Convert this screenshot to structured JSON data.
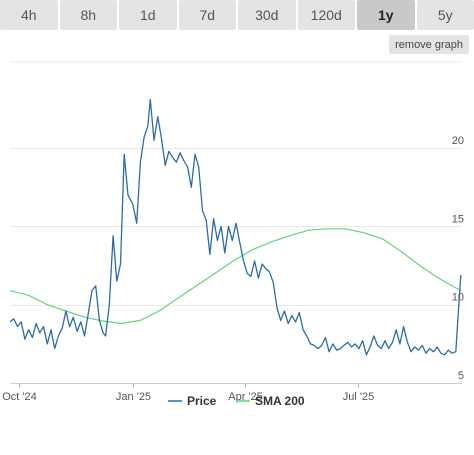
{
  "timeframe_tabs": [
    {
      "label": "4h",
      "active": false
    },
    {
      "label": "8h",
      "active": false
    },
    {
      "label": "1d",
      "active": false
    },
    {
      "label": "7d",
      "active": false
    },
    {
      "label": "30d",
      "active": false
    },
    {
      "label": "120d",
      "active": false
    },
    {
      "label": "1y",
      "active": true
    },
    {
      "label": "5y",
      "active": false
    }
  ],
  "remove_graph_label": "remove graph",
  "colors": {
    "price": "#2b6ca8",
    "sma": "#67d27e",
    "grid": "#e9e9e9",
    "tab_bg": "#e4e4e4",
    "tab_active_bg": "#c9c9c9"
  },
  "chart_data": {
    "type": "line",
    "x_tick_labels": [
      "Oct '24",
      "Jan '25",
      "Apr '25",
      "Jul '25"
    ],
    "x_ticks": [
      "2024-10-01",
      "2025-01-01",
      "2025-04-01",
      "2025-07-01"
    ],
    "xlim": [
      "2024-09-24",
      "2025-09-23"
    ],
    "y_tick_labels": [
      "5",
      "10",
      "15",
      "20"
    ],
    "y_ticks": [
      5,
      10,
      15,
      20
    ],
    "ylim": [
      5,
      25.5
    ],
    "y_axis_side": "right",
    "grid": "horizontal",
    "legend_position": "bottom-center",
    "series": [
      {
        "name": "Price",
        "color": "#2b6ca8",
        "points": [
          [
            "2024-09-24",
            8.9
          ],
          [
            "2024-09-27",
            9.1
          ],
          [
            "2024-09-30",
            8.6
          ],
          [
            "2024-10-03",
            8.9
          ],
          [
            "2024-10-06",
            7.8
          ],
          [
            "2024-10-09",
            8.4
          ],
          [
            "2024-10-12",
            7.9
          ],
          [
            "2024-10-15",
            8.8
          ],
          [
            "2024-10-18",
            8.2
          ],
          [
            "2024-10-21",
            8.6
          ],
          [
            "2024-10-24",
            7.5
          ],
          [
            "2024-10-27",
            8.4
          ],
          [
            "2024-10-30",
            7.2
          ],
          [
            "2024-11-02",
            8.0
          ],
          [
            "2024-11-05",
            8.5
          ],
          [
            "2024-11-08",
            9.6
          ],
          [
            "2024-11-11",
            8.6
          ],
          [
            "2024-11-14",
            9.2
          ],
          [
            "2024-11-17",
            8.3
          ],
          [
            "2024-11-20",
            8.9
          ],
          [
            "2024-11-23",
            8.0
          ],
          [
            "2024-11-26",
            9.4
          ],
          [
            "2024-11-29",
            10.9
          ],
          [
            "2024-12-02",
            11.2
          ],
          [
            "2024-12-05",
            9.0
          ],
          [
            "2024-12-08",
            8.2
          ],
          [
            "2024-12-10",
            8.0
          ],
          [
            "2024-12-13",
            10.0
          ],
          [
            "2024-12-16",
            14.4
          ],
          [
            "2024-12-19",
            11.5
          ],
          [
            "2024-12-22",
            12.6
          ],
          [
            "2024-12-25",
            19.6
          ],
          [
            "2024-12-28",
            17.0
          ],
          [
            "2025-01-01",
            16.4
          ],
          [
            "2025-01-04",
            15.2
          ],
          [
            "2025-01-07",
            19.1
          ],
          [
            "2025-01-10",
            20.7
          ],
          [
            "2025-01-13",
            21.4
          ],
          [
            "2025-01-15",
            23.1
          ],
          [
            "2025-01-18",
            20.5
          ],
          [
            "2025-01-21",
            22.0
          ],
          [
            "2025-01-24",
            20.6
          ],
          [
            "2025-01-27",
            18.9
          ],
          [
            "2025-01-30",
            19.8
          ],
          [
            "2025-02-02",
            19.4
          ],
          [
            "2025-02-05",
            19.1
          ],
          [
            "2025-02-08",
            19.7
          ],
          [
            "2025-02-11",
            19.2
          ],
          [
            "2025-02-14",
            18.8
          ],
          [
            "2025-02-17",
            17.5
          ],
          [
            "2025-02-20",
            19.6
          ],
          [
            "2025-02-23",
            18.8
          ],
          [
            "2025-02-26",
            16.0
          ],
          [
            "2025-03-01",
            15.4
          ],
          [
            "2025-03-04",
            13.2
          ],
          [
            "2025-03-07",
            15.5
          ],
          [
            "2025-03-10",
            14.1
          ],
          [
            "2025-03-13",
            15.0
          ],
          [
            "2025-03-16",
            13.3
          ],
          [
            "2025-03-19",
            15.0
          ],
          [
            "2025-03-22",
            14.1
          ],
          [
            "2025-03-25",
            15.2
          ],
          [
            "2025-03-28",
            14.0
          ],
          [
            "2025-03-31",
            12.8
          ],
          [
            "2025-04-03",
            12.0
          ],
          [
            "2025-04-06",
            11.8
          ],
          [
            "2025-04-09",
            12.8
          ],
          [
            "2025-04-12",
            11.7
          ],
          [
            "2025-04-15",
            12.6
          ],
          [
            "2025-04-18",
            12.3
          ],
          [
            "2025-04-21",
            12.1
          ],
          [
            "2025-04-24",
            11.4
          ],
          [
            "2025-04-27",
            9.8
          ],
          [
            "2025-04-30",
            9.0
          ],
          [
            "2025-05-03",
            9.6
          ],
          [
            "2025-05-06",
            8.8
          ],
          [
            "2025-05-09",
            9.3
          ],
          [
            "2025-05-12",
            8.9
          ],
          [
            "2025-05-15",
            9.5
          ],
          [
            "2025-05-18",
            8.4
          ],
          [
            "2025-05-21",
            8.0
          ],
          [
            "2025-05-24",
            7.5
          ],
          [
            "2025-05-27",
            7.4
          ],
          [
            "2025-05-30",
            7.2
          ],
          [
            "2025-06-02",
            7.4
          ],
          [
            "2025-06-05",
            7.9
          ],
          [
            "2025-06-08",
            7.0
          ],
          [
            "2025-06-11",
            7.5
          ],
          [
            "2025-06-14",
            7.1
          ],
          [
            "2025-06-17",
            7.2
          ],
          [
            "2025-06-20",
            7.4
          ],
          [
            "2025-06-23",
            7.6
          ],
          [
            "2025-06-26",
            7.3
          ],
          [
            "2025-06-29",
            7.5
          ],
          [
            "2025-07-02",
            7.2
          ],
          [
            "2025-07-05",
            7.7
          ],
          [
            "2025-07-08",
            6.8
          ],
          [
            "2025-07-11",
            7.3
          ],
          [
            "2025-07-14",
            8.0
          ],
          [
            "2025-07-17",
            7.4
          ],
          [
            "2025-07-20",
            7.2
          ],
          [
            "2025-07-23",
            7.7
          ],
          [
            "2025-07-26",
            7.2
          ],
          [
            "2025-07-29",
            7.6
          ],
          [
            "2025-08-01",
            8.4
          ],
          [
            "2025-08-04",
            7.5
          ],
          [
            "2025-08-07",
            8.6
          ],
          [
            "2025-08-10",
            7.6
          ],
          [
            "2025-08-13",
            7.0
          ],
          [
            "2025-08-16",
            7.3
          ],
          [
            "2025-08-19",
            7.1
          ],
          [
            "2025-08-22",
            7.4
          ],
          [
            "2025-08-25",
            6.9
          ],
          [
            "2025-08-28",
            7.2
          ],
          [
            "2025-08-31",
            7.0
          ],
          [
            "2025-09-03",
            7.3
          ],
          [
            "2025-09-06",
            6.9
          ],
          [
            "2025-09-09",
            6.8
          ],
          [
            "2025-09-12",
            7.1
          ],
          [
            "2025-09-15",
            6.9
          ],
          [
            "2025-09-18",
            7.0
          ],
          [
            "2025-09-20",
            9.5
          ],
          [
            "2025-09-22",
            11.9
          ]
        ]
      },
      {
        "name": "SMA 200",
        "color": "#67d27e",
        "points": [
          [
            "2024-09-24",
            10.9
          ],
          [
            "2024-10-09",
            10.6
          ],
          [
            "2024-10-24",
            10.0
          ],
          [
            "2024-11-08",
            9.6
          ],
          [
            "2024-11-23",
            9.2
          ],
          [
            "2024-12-08",
            8.95
          ],
          [
            "2024-12-23",
            8.8
          ],
          [
            "2025-01-07",
            9.0
          ],
          [
            "2025-01-22",
            9.6
          ],
          [
            "2025-02-06",
            10.4
          ],
          [
            "2025-02-21",
            11.2
          ],
          [
            "2025-03-08",
            12.0
          ],
          [
            "2025-03-23",
            12.8
          ],
          [
            "2025-04-07",
            13.5
          ],
          [
            "2025-04-22",
            14.0
          ],
          [
            "2025-05-07",
            14.4
          ],
          [
            "2025-05-22",
            14.75
          ],
          [
            "2025-06-06",
            14.85
          ],
          [
            "2025-06-21",
            14.85
          ],
          [
            "2025-07-06",
            14.6
          ],
          [
            "2025-07-21",
            14.2
          ],
          [
            "2025-08-05",
            13.4
          ],
          [
            "2025-08-20",
            12.5
          ],
          [
            "2025-09-04",
            11.7
          ],
          [
            "2025-09-22",
            10.9
          ]
        ]
      }
    ]
  }
}
